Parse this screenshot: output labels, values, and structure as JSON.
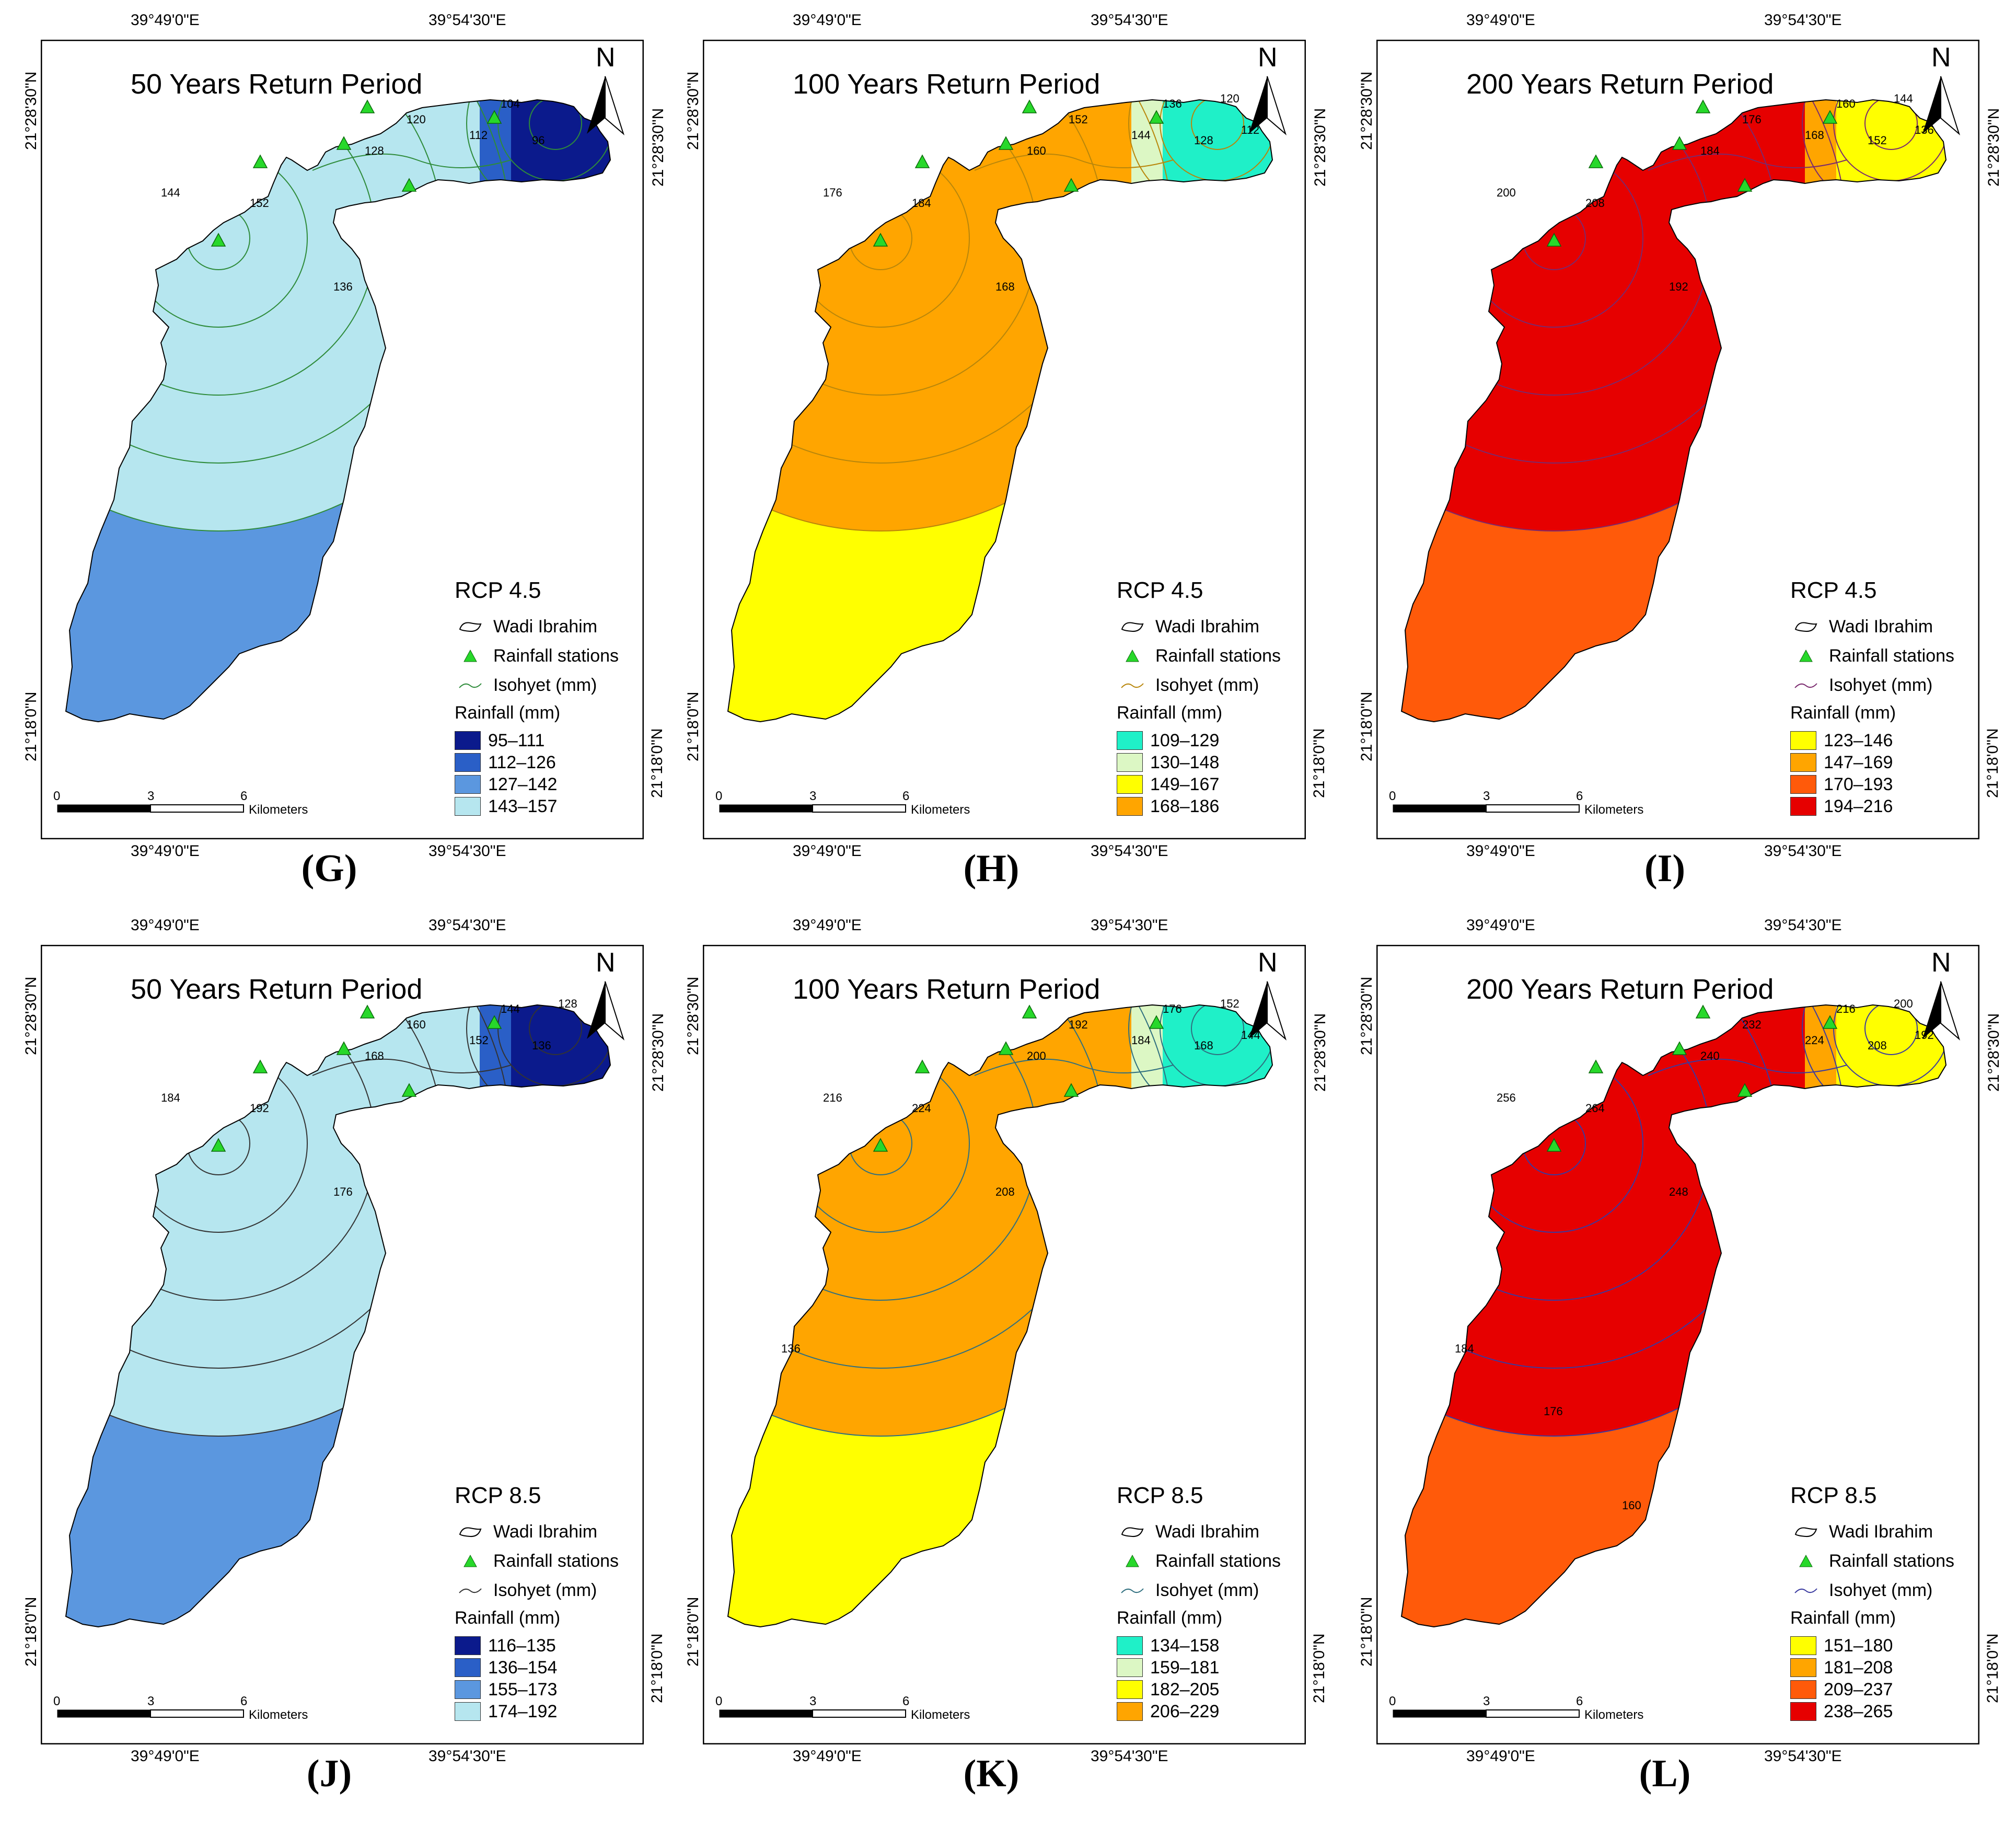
{
  "coords": {
    "lon_left": "39°49'0\"E",
    "lon_right": "39°54'30\"E",
    "lat_top": "21°28'30\"N",
    "lat_bottom": "21°18'0\"N"
  },
  "north": "N",
  "legend_labels": {
    "watershed": "Wadi Ibrahim",
    "stations": "Rainfall stations",
    "isohyet": "Isohyet (mm)",
    "rainfall": "Rainfall (mm)"
  },
  "scalebar": {
    "ticks": [
      "0",
      "3",
      "6"
    ],
    "unit": "Kilometers"
  },
  "panels": [
    {
      "caption": "(G)",
      "title": "50 Years Return Period",
      "scenario": "RCP 4.5",
      "classes": [
        {
          "label": "95–111",
          "color": "#0b1a8c"
        },
        {
          "label": "112–126",
          "color": "#2a5fc7"
        },
        {
          "label": "127–142",
          "color": "#5b97df"
        },
        {
          "label": "143–157",
          "color": "#b6e6ef"
        }
      ],
      "isohyet_color": "#2e8b3a",
      "isohyet_labels": [
        "152",
        "144",
        "136",
        "128",
        "120",
        "112",
        "104",
        "96"
      ]
    },
    {
      "caption": "(H)",
      "title": "100 Years Return Period",
      "scenario": "RCP 4.5",
      "classes": [
        {
          "label": "109–129",
          "color": "#1ff0c8"
        },
        {
          "label": "130–148",
          "color": "#dcf7c4"
        },
        {
          "label": "149–167",
          "color": "#ffff00"
        },
        {
          "label": "168–186",
          "color": "#ffa500"
        }
      ],
      "isohyet_color": "#b8860b",
      "isohyet_labels": [
        "184",
        "176",
        "168",
        "160",
        "152",
        "144",
        "136",
        "128",
        "120",
        "112"
      ]
    },
    {
      "caption": "(I)",
      "title": "200 Years Return Period",
      "scenario": "RCP 4.5",
      "classes": [
        {
          "label": "123–146",
          "color": "#ffff00"
        },
        {
          "label": "147–169",
          "color": "#ffa500"
        },
        {
          "label": "170–193",
          "color": "#ff5a0a"
        },
        {
          "label": "194–216",
          "color": "#e60000"
        }
      ],
      "isohyet_color": "#7a2a6e",
      "isohyet_labels": [
        "208",
        "200",
        "192",
        "184",
        "176",
        "168",
        "160",
        "152",
        "144",
        "136"
      ]
    },
    {
      "caption": "(J)",
      "title": "50 Years Return Period",
      "scenario": "RCP 8.5",
      "classes": [
        {
          "label": "116–135",
          "color": "#0b1a8c"
        },
        {
          "label": "136–154",
          "color": "#2a5fc7"
        },
        {
          "label": "155–173",
          "color": "#5b97df"
        },
        {
          "label": "174–192",
          "color": "#b6e6ef"
        }
      ],
      "isohyet_color": "#333333",
      "isohyet_labels": [
        "192",
        "184",
        "176",
        "168",
        "160",
        "152",
        "144",
        "136",
        "128"
      ]
    },
    {
      "caption": "(K)",
      "title": "100 Years Return Period",
      "scenario": "RCP 8.5",
      "classes": [
        {
          "label": "134–158",
          "color": "#1ff0c8"
        },
        {
          "label": "159–181",
          "color": "#dcf7c4"
        },
        {
          "label": "182–205",
          "color": "#ffff00"
        },
        {
          "label": "206–229",
          "color": "#ffa500"
        }
      ],
      "isohyet_color": "#2f6f7f",
      "isohyet_labels": [
        "224",
        "216",
        "208",
        "200",
        "192",
        "184",
        "176",
        "168",
        "152",
        "144",
        "136"
      ]
    },
    {
      "caption": "(L)",
      "title": "200 Years Return Period",
      "scenario": "RCP 8.5",
      "classes": [
        {
          "label": "151–180",
          "color": "#ffff00"
        },
        {
          "label": "181–208",
          "color": "#ffa500"
        },
        {
          "label": "209–237",
          "color": "#ff5a0a"
        },
        {
          "label": "238–265",
          "color": "#e60000"
        }
      ],
      "isohyet_color": "#3a3aa0",
      "isohyet_labels": [
        "264",
        "256",
        "248",
        "240",
        "232",
        "224",
        "216",
        "208",
        "200",
        "192",
        "184",
        "176",
        "160"
      ]
    }
  ]
}
